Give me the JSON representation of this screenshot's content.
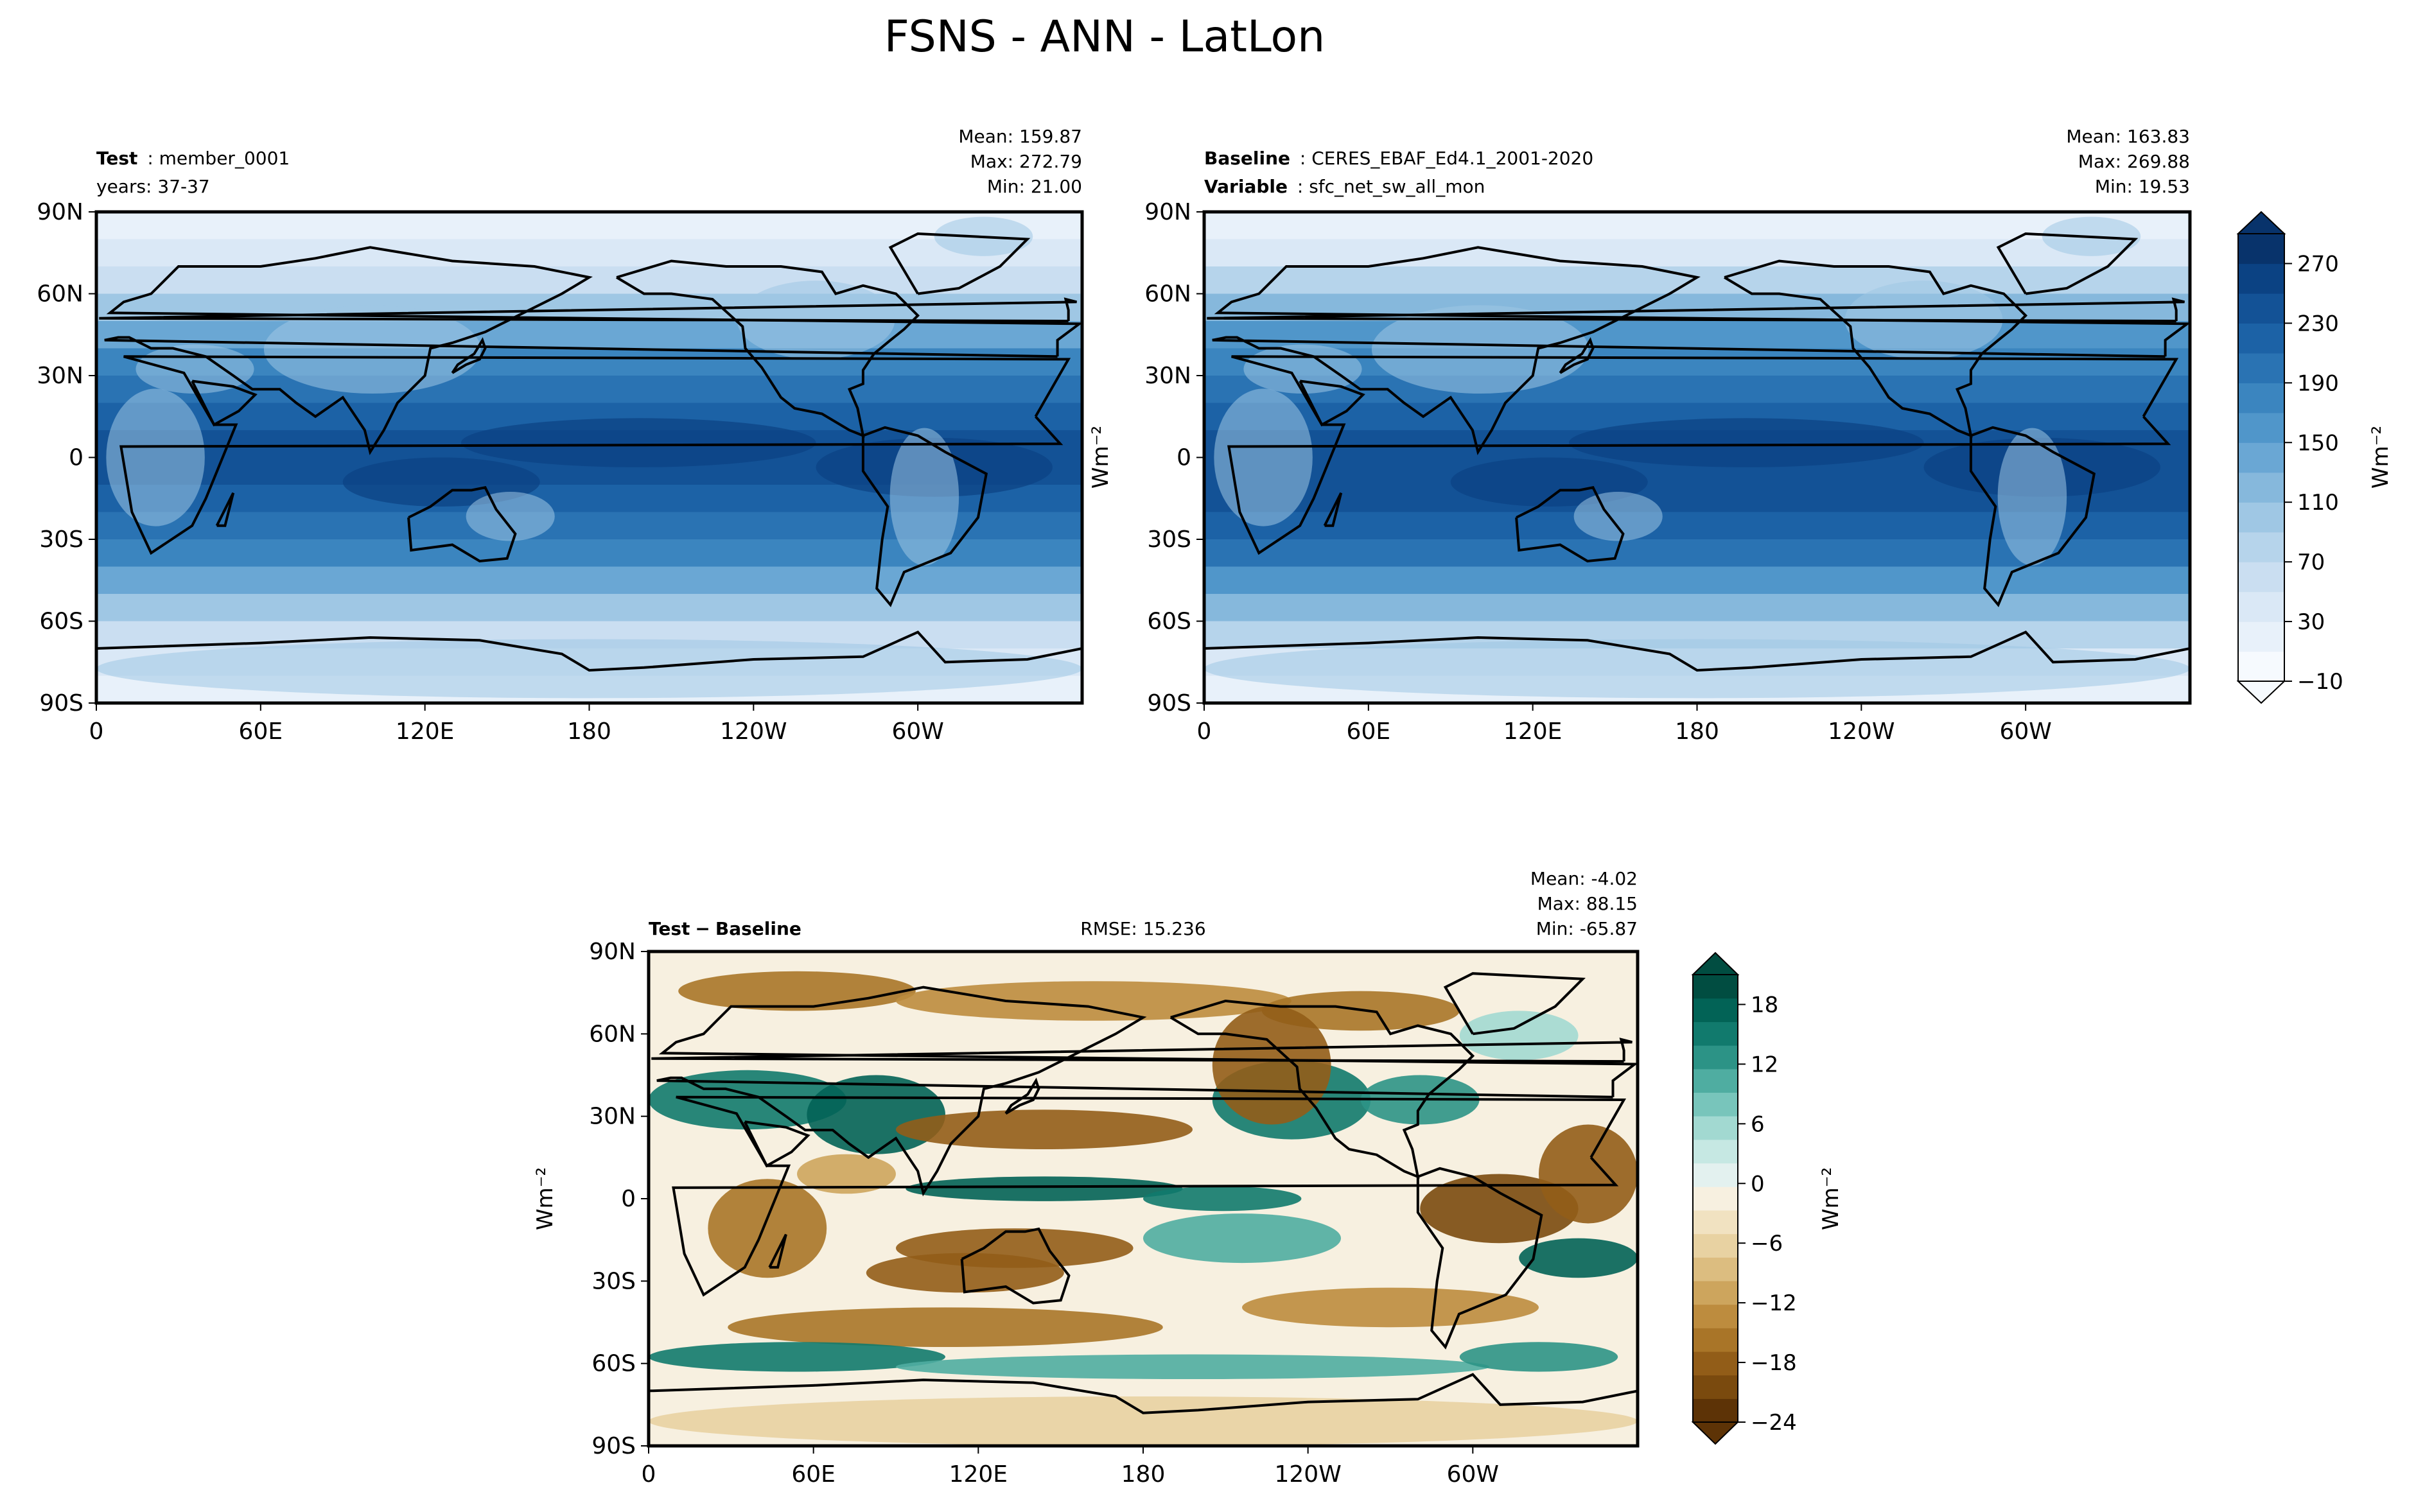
{
  "figure": {
    "title": "FSNS - ANN - LatLon"
  },
  "panels": {
    "test": {
      "label_bold": "Test",
      "label_value": "member_0001",
      "line2": "years: 37-37",
      "stats": {
        "mean": "Mean: 159.87",
        "max": "Max: 272.79",
        "min": "Min: 21.00"
      }
    },
    "baseline": {
      "label_bold": "Baseline",
      "label_value": "CERES_EBAF_Ed4.1_2001-2020",
      "line2_bold": "Variable",
      "line2_value": "sfc_net_sw_all_mon",
      "stats": {
        "mean": "Mean: 163.83",
        "max": "Max: 269.88",
        "min": "Min: 19.53"
      }
    },
    "diff": {
      "label_a": "Test",
      "label_op": "−",
      "label_b": "Baseline",
      "rmse": "RMSE: 15.236",
      "stats": {
        "mean": "Mean: -4.02",
        "max": "Max: 88.15",
        "min": "Min: -65.87"
      }
    }
  },
  "chart_data": [
    {
      "type": "heatmap",
      "name": "Test",
      "projection": "PlateCarree",
      "x_range": [
        0,
        360
      ],
      "y_range": [
        -90,
        90
      ],
      "xtick_labels": [
        "0",
        "60E",
        "120E",
        "180",
        "120W",
        "60W"
      ],
      "ytick_labels": [
        "90N",
        "60N",
        "30N",
        "0",
        "30S",
        "60S",
        "90S"
      ],
      "ylabel": "",
      "mean": 159.87,
      "max": 272.79,
      "min": 21.0
    },
    {
      "type": "heatmap",
      "name": "Baseline",
      "projection": "PlateCarree",
      "x_range": [
        0,
        360
      ],
      "y_range": [
        -90,
        90
      ],
      "xtick_labels": [
        "0",
        "60E",
        "120E",
        "180",
        "120W",
        "60W"
      ],
      "ytick_labels": [
        "90N",
        "60N",
        "30N",
        "0",
        "30S",
        "60S",
        "90S"
      ],
      "ylabel": "Wm⁻²",
      "mean": 163.83,
      "max": 269.88,
      "min": 19.53
    },
    {
      "type": "heatmap",
      "name": "Test − Baseline",
      "projection": "PlateCarree",
      "x_range": [
        0,
        360
      ],
      "y_range": [
        -90,
        90
      ],
      "xtick_labels": [
        "0",
        "60E",
        "120E",
        "180",
        "120W",
        "60W"
      ],
      "ytick_labels": [
        "90N",
        "60N",
        "30N",
        "0",
        "30S",
        "60S",
        "90S"
      ],
      "ylabel": "Wm⁻²",
      "rmse": 15.236,
      "mean": -4.02,
      "max": 88.15,
      "min": -65.87
    }
  ],
  "colorbars": {
    "main": {
      "label": "Wm⁻²",
      "range": [
        -10,
        290
      ],
      "tick_labels": [
        "−10",
        "30",
        "70",
        "110",
        "150",
        "190",
        "230",
        "270"
      ],
      "colors": [
        "#f6fafe",
        "#e8f1fa",
        "#dae8f6",
        "#cadef1",
        "#b6d4eb",
        "#9fc7e4",
        "#86b8dc",
        "#6aa7d4",
        "#5096ca",
        "#3b85bf",
        "#2a73b3",
        "#1c62a6",
        "#135296",
        "#0b4283",
        "#08336b"
      ],
      "extend": "both"
    },
    "diff": {
      "label": "Wm⁻²",
      "range": [
        -24,
        21
      ],
      "tick_labels": [
        "−24",
        "−18",
        "−12",
        "−6",
        "0",
        "6",
        "12",
        "18"
      ],
      "colors": [
        "#5d3306",
        "#7a4a0e",
        "#925d18",
        "#a97528",
        "#bd8c3e",
        "#cda55d",
        "#dcbd80",
        "#e8d2a2",
        "#f1e2c1",
        "#f7f0e0",
        "#e3f1ef",
        "#c6e8e3",
        "#a2d9d1",
        "#78c5bb",
        "#4fada1",
        "#2c9386",
        "#117a6d",
        "#026356",
        "#014d41"
      ],
      "extend": "both"
    },
    "palette": {
      "land_outline": "#000000",
      "axis": "#000000"
    }
  }
}
